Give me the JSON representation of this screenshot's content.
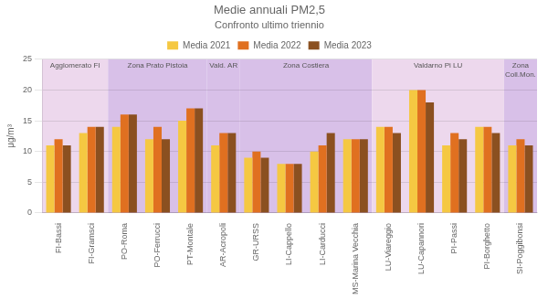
{
  "chart_data": {
    "type": "bar",
    "title": "Medie annuali PM2,5",
    "subtitle": "Confronto ultimo triennio",
    "ylabel": "μg/m³",
    "categories": [
      "FI-Bassi",
      "FI-Gramsci",
      "PO-Roma",
      "PO-Ferrucci",
      "PT-Montale",
      "AR-Acropoli",
      "GR-URSS",
      "LI-Cappello",
      "LI-Carducci",
      "MS-Marina Vecchia",
      "LU-Viareggio",
      "LU-Capannori",
      "PI-Passi",
      "PI-Borghetto",
      "SI-Poggibonsi"
    ],
    "series": [
      {
        "name": "Media 2021",
        "color": "#F5C842",
        "values": [
          11,
          13,
          14,
          12,
          15,
          11,
          9,
          8,
          10,
          12,
          14,
          20,
          11,
          14,
          11
        ]
      },
      {
        "name": "Media 2022",
        "color": "#E07020",
        "values": [
          12,
          14,
          16,
          14,
          17,
          13,
          10,
          8,
          11,
          12,
          14,
          20,
          13,
          14,
          12
        ]
      },
      {
        "name": "Media 2023",
        "color": "#8B5020",
        "values": [
          11,
          14,
          16,
          12,
          17,
          13,
          9,
          8,
          13,
          12,
          13,
          18,
          12,
          13,
          11
        ]
      }
    ],
    "zones": [
      {
        "label": "Agglomerato FI",
        "start": "FI-Bassi",
        "end": "FI-Gramsci",
        "color": "#EDD8ED"
      },
      {
        "label": "Zona Prato Pistoia",
        "start": "PO-Roma",
        "end": "PT-Montale",
        "color": "#D8C0E8"
      },
      {
        "label": "Vald. AR",
        "start": "AR-Acropoli",
        "end": "AR-Acropoli",
        "color": "#D8C0E8"
      },
      {
        "label": "Zona Costiera",
        "start": "GR-URSS",
        "end": "MS-Marina Vecchia",
        "color": "#D8C0E8"
      },
      {
        "label": "Valdarno Pi LU",
        "start": "LU-Viareggio",
        "end": "PI-Borghetto",
        "color": "#EDD8ED"
      },
      {
        "label": "Zona\nColl.Mon.",
        "start": "SI-Poggibonsi",
        "end": "SI-Poggibonsi",
        "color": "#D8C0E8"
      }
    ],
    "ylim": [
      0,
      25
    ],
    "yticks": [
      0,
      5,
      10,
      15,
      20,
      25
    ],
    "grid": true,
    "legend": "top"
  }
}
